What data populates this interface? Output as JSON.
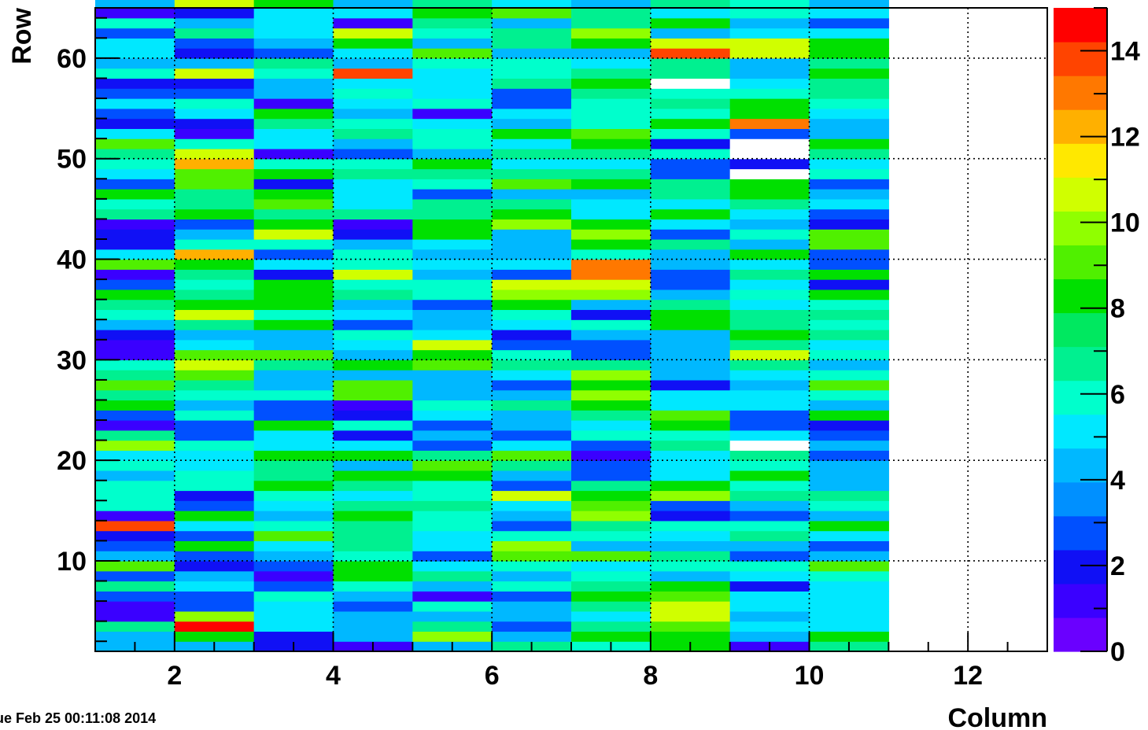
{
  "timestamp": "ue Feb 25 00:11:08 2014",
  "chart_data": {
    "type": "heatmap",
    "xlabel": "Column",
    "ylabel": "Row",
    "x_range": [
      1,
      13
    ],
    "y_range": [
      1,
      65
    ],
    "x_ticks": [
      "2",
      "4",
      "6",
      "8",
      "10",
      "12"
    ],
    "y_ticks": [
      "10",
      "20",
      "30",
      "40",
      "50",
      "60"
    ],
    "z_range": [
      0,
      15
    ],
    "z_ticks": [
      "0",
      "2",
      "4",
      "6",
      "8",
      "10",
      "12",
      "14"
    ],
    "grid": "dotted",
    "palette": [
      "#6a00ff",
      "#3a00ff",
      "#1010f5",
      "#0050ff",
      "#0090ff",
      "#00b8ff",
      "#00e8ff",
      "#00ffcc",
      "#00f090",
      "#00e860",
      "#00e000",
      "#50f000",
      "#90ff00",
      "#d0ff00",
      "#ffe800",
      "#ffb000",
      "#ff7800",
      "#ff4400",
      "#ff0000"
    ],
    "columns": [
      {
        "col": 1,
        "values": [
          4,
          4,
          7,
          1,
          1,
          3,
          7,
          3,
          9,
          4,
          3,
          2,
          14,
          1,
          6,
          6,
          6,
          4,
          6,
          5,
          10,
          7,
          1,
          3,
          8,
          7,
          9,
          7,
          6,
          1,
          1,
          2,
          4,
          6,
          7,
          8,
          3,
          1,
          9,
          5,
          2,
          2,
          1,
          7,
          6,
          8,
          3,
          5,
          6,
          7,
          9,
          5,
          2,
          3,
          5,
          3,
          2,
          6,
          4,
          5,
          5,
          3,
          6,
          1,
          4
        ]
      },
      {
        "col": 2,
        "values": [
          4,
          8,
          15,
          10,
          3,
          3,
          5,
          4,
          2,
          3,
          8,
          3,
          5,
          8,
          3,
          2,
          6,
          6,
          5,
          5,
          6,
          3,
          3,
          6,
          4,
          6,
          7,
          9,
          11,
          9,
          5,
          4,
          7,
          11,
          8,
          7,
          6,
          7,
          8,
          12,
          6,
          4,
          3,
          8,
          7,
          7,
          9,
          9,
          12,
          11,
          6,
          1,
          2,
          5,
          6,
          3,
          2,
          11,
          4,
          2,
          3,
          7,
          4,
          2,
          11
        ]
      },
      {
        "col": 3,
        "values": [
          2,
          2,
          5,
          5,
          5,
          6,
          3,
          1,
          3,
          4,
          5,
          9,
          6,
          4,
          5,
          6,
          8,
          7,
          7,
          8,
          5,
          5,
          8,
          3,
          3,
          6,
          4,
          4,
          7,
          9,
          4,
          4,
          8,
          6,
          8,
          8,
          8,
          2,
          5,
          3,
          6,
          11,
          8,
          7,
          9,
          8,
          2,
          8,
          6,
          1,
          5,
          5,
          7,
          8,
          1,
          4,
          4,
          6,
          7,
          3,
          4,
          5,
          5,
          5,
          8
        ]
      },
      {
        "col": 4,
        "values": [
          1,
          4,
          4,
          4,
          3,
          4,
          6,
          8,
          8,
          6,
          7,
          7,
          7,
          8,
          7,
          5,
          7,
          8,
          4,
          8,
          5,
          2,
          6,
          2,
          1,
          9,
          9,
          4,
          8,
          4,
          5,
          6,
          3,
          5,
          4,
          7,
          6,
          11,
          6,
          6,
          4,
          2,
          1,
          7,
          5,
          5,
          5,
          7,
          6,
          3,
          4,
          7,
          6,
          4,
          5,
          6,
          5,
          14,
          4,
          5,
          8,
          11,
          1,
          5,
          4
        ]
      },
      {
        "col": 5,
        "values": [
          4,
          10,
          7,
          4,
          6,
          1,
          4,
          7,
          5,
          3,
          5,
          5,
          6,
          6,
          7,
          6,
          6,
          8,
          9,
          7,
          3,
          4,
          3,
          5,
          6,
          4,
          4,
          4,
          9,
          8,
          11,
          5,
          4,
          4,
          3,
          6,
          6,
          4,
          5,
          4,
          5,
          8,
          8,
          7,
          7,
          3,
          6,
          7,
          8,
          4,
          6,
          6,
          5,
          1,
          6,
          5,
          5,
          5,
          6,
          9,
          4,
          6,
          7,
          8,
          7
        ]
      },
      {
        "col": 6,
        "values": [
          7,
          4,
          3,
          4,
          4,
          3,
          6,
          4,
          6,
          9,
          10,
          6,
          3,
          4,
          5,
          11,
          3,
          4,
          7,
          9,
          5,
          3,
          4,
          4,
          7,
          4,
          3,
          5,
          7,
          6,
          3,
          2,
          5,
          6,
          8,
          10,
          11,
          3,
          5,
          4,
          4,
          4,
          10,
          8,
          7,
          4,
          9,
          7,
          5,
          7,
          5,
          8,
          4,
          5,
          3,
          3,
          7,
          6,
          6,
          4,
          7,
          7,
          4,
          9,
          5
        ]
      },
      {
        "col": 7,
        "values": [
          6,
          8,
          7,
          5,
          7,
          8,
          7,
          6,
          5,
          9,
          4,
          6,
          7,
          10,
          9,
          8,
          7,
          3,
          3,
          1,
          3,
          6,
          5,
          7,
          8,
          10,
          8,
          10,
          7,
          3,
          3,
          4,
          6,
          2,
          4,
          10,
          11,
          13,
          13,
          6,
          8,
          10,
          8,
          5,
          5,
          4,
          8,
          7,
          5,
          7,
          8,
          9,
          6,
          6,
          6,
          7,
          8,
          7,
          5,
          4,
          8,
          10,
          7,
          7,
          4
        ]
      },
      {
        "col": 8,
        "values": [
          8,
          8,
          9,
          11,
          11,
          9,
          8,
          4,
          6,
          7,
          4,
          5,
          6,
          2,
          3,
          10,
          8,
          5,
          5,
          5,
          7,
          6,
          8,
          9,
          5,
          5,
          2,
          4,
          4,
          4,
          4,
          4,
          8,
          8,
          7,
          4,
          3,
          3,
          4,
          4,
          7,
          3,
          5,
          8,
          5,
          7,
          7,
          3,
          3,
          6,
          2,
          6,
          8,
          6,
          7,
          6,
          16,
          7,
          7,
          14,
          11,
          4,
          8,
          5,
          7
        ]
      },
      {
        "col": 9,
        "values": [
          1,
          4,
          5,
          4,
          5,
          5,
          2,
          5,
          6,
          3,
          4,
          7,
          6,
          3,
          4,
          7,
          6,
          8,
          6,
          7,
          16,
          5,
          3,
          3,
          5,
          5,
          4,
          5,
          7,
          11,
          7,
          8,
          7,
          7,
          5,
          6,
          5,
          7,
          5,
          8,
          4,
          6,
          4,
          5,
          7,
          8,
          8,
          16,
          2,
          16,
          16,
          3,
          13,
          8,
          8,
          6,
          5,
          4,
          4,
          11,
          11,
          5,
          4,
          6,
          6
        ]
      },
      {
        "col": 10,
        "values": [
          7,
          8,
          5,
          5,
          5,
          5,
          5,
          6,
          9,
          4,
          3,
          5,
          8,
          4,
          6,
          7,
          4,
          4,
          4,
          3,
          4,
          3,
          2,
          8,
          4,
          6,
          9,
          6,
          4,
          6,
          5,
          7,
          6,
          7,
          6,
          8,
          2,
          8,
          3,
          3,
          9,
          9,
          2,
          3,
          5,
          4,
          3,
          6,
          5,
          7,
          8,
          4,
          4,
          5,
          6,
          7,
          7,
          8,
          7,
          8,
          8,
          5,
          3,
          5,
          4
        ]
      }
    ]
  }
}
